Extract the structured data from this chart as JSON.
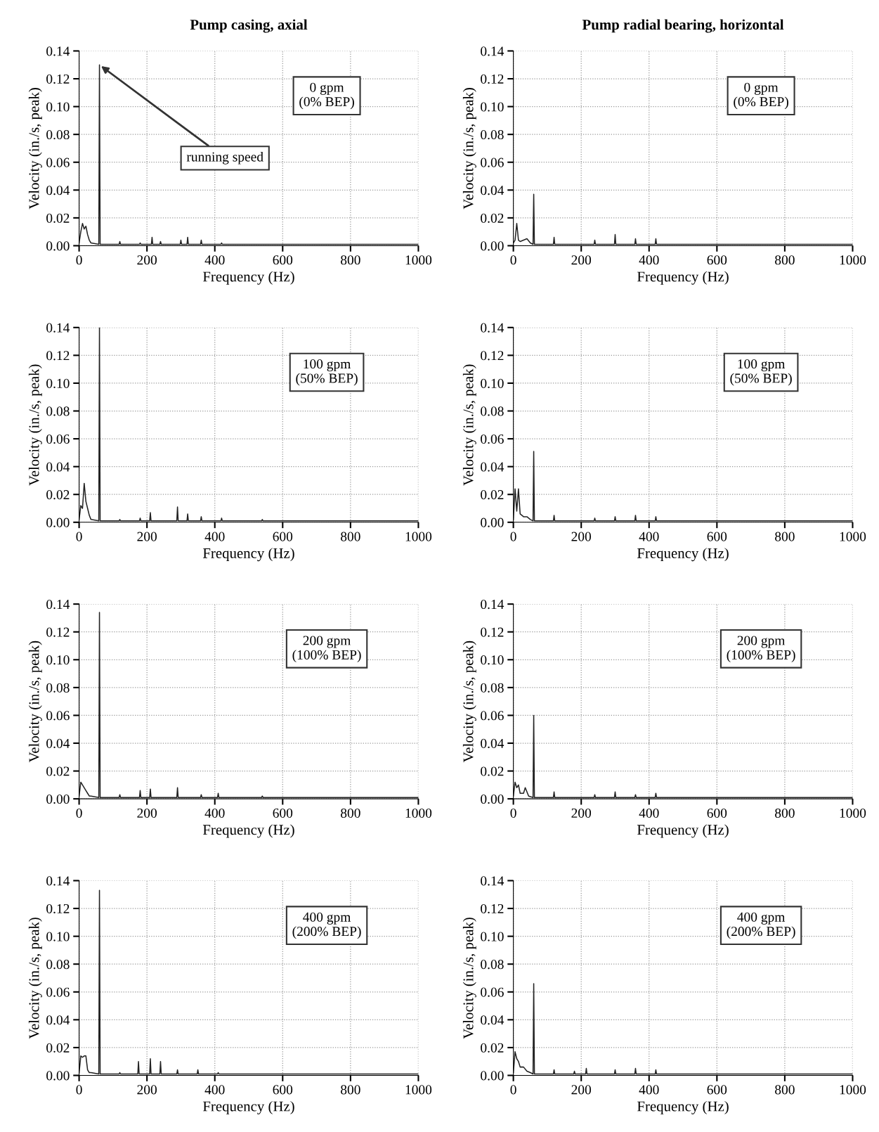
{
  "chart_data": [
    {
      "type": "line",
      "title": "Pump casing, axial",
      "xlabel": "Frequency (Hz)",
      "ylabel": "Velocity (in./s, peak)",
      "xlim": [
        0,
        1000
      ],
      "ylim": [
        0,
        0.14
      ],
      "xticks": [
        0,
        200,
        400,
        600,
        800,
        1000
      ],
      "yticks": [
        {
          "value": 0,
          "label": "0.00"
        },
        {
          "value": 0.02,
          "label": "0.02"
        },
        {
          "value": 0.04,
          "label": "0.04"
        },
        {
          "value": 0.06,
          "label": "0.06"
        },
        {
          "value": 0.08,
          "label": "0.08"
        },
        {
          "value": 0.1,
          "label": "0.10"
        },
        {
          "value": 0.12,
          "label": "0.12"
        },
        {
          "value": 0.14,
          "label": "0.14"
        }
      ],
      "grid": true,
      "x": [
        0,
        5,
        10,
        15,
        20,
        25,
        30,
        35,
        58,
        60,
        62,
        118,
        120,
        122,
        178,
        180,
        182,
        213,
        215,
        217,
        238,
        240,
        242,
        298,
        300,
        302,
        318,
        320,
        322,
        358,
        360,
        362,
        418,
        420,
        422,
        600,
        1000
      ],
      "series": [
        {
          "color": "#222222",
          "values": [
            0.002,
            0.01,
            0.016,
            0.012,
            0.014,
            0.008,
            0.004,
            0.002,
            0.001,
            0.13,
            0.001,
            0.001,
            0.003,
            0.001,
            0.001,
            0.002,
            0.001,
            0.001,
            0.006,
            0.001,
            0.001,
            0.003,
            0.001,
            0.001,
            0.004,
            0.001,
            0.001,
            0.006,
            0.001,
            0.001,
            0.004,
            0.001,
            0.001,
            0.002,
            0.001,
            0.001,
            0.001
          ]
        }
      ],
      "annotations": [
        "0 gpm\n(0% BEP)",
        {
          "text": "running speed",
          "x": 60,
          "y": 0.13
        }
      ]
    },
    {
      "type": "line",
      "title": "Pump radial bearing, horizontal",
      "xlabel": "Frequency (Hz)",
      "ylabel": "Velocity (in./s, peak)",
      "xlim": [
        0,
        1000
      ],
      "ylim": [
        0,
        0.14
      ],
      "xticks": [
        0,
        200,
        400,
        600,
        800,
        1000
      ],
      "yticks": [
        {
          "value": 0,
          "label": "0.00"
        },
        {
          "value": 0.02,
          "label": "0.02"
        },
        {
          "value": 0.04,
          "label": "0.04"
        },
        {
          "value": 0.06,
          "label": "0.06"
        },
        {
          "value": 0.08,
          "label": "0.08"
        },
        {
          "value": 0.1,
          "label": "0.10"
        },
        {
          "value": 0.12,
          "label": "0.12"
        },
        {
          "value": 0.14,
          "label": "0.14"
        }
      ],
      "grid": true,
      "x": [
        0,
        5,
        10,
        15,
        20,
        30,
        40,
        50,
        58,
        60,
        62,
        118,
        120,
        122,
        238,
        240,
        242,
        298,
        300,
        302,
        358,
        360,
        362,
        418,
        420,
        422,
        600,
        1000
      ],
      "series": [
        {
          "color": "#222222",
          "values": [
            0.002,
            0.004,
            0.016,
            0.004,
            0.003,
            0.004,
            0.005,
            0.002,
            0.001,
            0.037,
            0.001,
            0.001,
            0.006,
            0.001,
            0.001,
            0.004,
            0.001,
            0.001,
            0.008,
            0.001,
            0.001,
            0.005,
            0.001,
            0.001,
            0.005,
            0.001,
            0.001,
            0.001
          ]
        }
      ],
      "annotations": [
        "0 gpm\n(0% BEP)"
      ]
    },
    {
      "type": "line",
      "xlabel": "Frequency (Hz)",
      "ylabel": "Velocity (in./s, peak)",
      "xlim": [
        0,
        1000
      ],
      "ylim": [
        0,
        0.14
      ],
      "xticks": [
        0,
        200,
        400,
        600,
        800,
        1000
      ],
      "yticks": [
        {
          "value": 0,
          "label": "0.00"
        },
        {
          "value": 0.02,
          "label": "0.02"
        },
        {
          "value": 0.04,
          "label": "0.04"
        },
        {
          "value": 0.06,
          "label": "0.06"
        },
        {
          "value": 0.08,
          "label": "0.08"
        },
        {
          "value": 0.1,
          "label": "0.10"
        },
        {
          "value": 0.12,
          "label": "0.12"
        },
        {
          "value": 0.14,
          "label": "0.14"
        }
      ],
      "grid": true,
      "x": [
        0,
        5,
        10,
        15,
        20,
        25,
        30,
        35,
        58,
        60,
        62,
        118,
        120,
        122,
        178,
        180,
        182,
        208,
        210,
        212,
        288,
        290,
        292,
        318,
        320,
        322,
        358,
        360,
        362,
        418,
        420,
        422,
        538,
        540,
        542,
        700,
        1000
      ],
      "series": [
        {
          "color": "#222222",
          "values": [
            0.002,
            0.012,
            0.01,
            0.028,
            0.015,
            0.01,
            0.005,
            0.002,
            0.001,
            0.14,
            0.001,
            0.001,
            0.002,
            0.001,
            0.001,
            0.003,
            0.001,
            0.001,
            0.007,
            0.001,
            0.001,
            0.011,
            0.001,
            0.001,
            0.006,
            0.001,
            0.001,
            0.004,
            0.001,
            0.001,
            0.003,
            0.001,
            0.001,
            0.002,
            0.001,
            0.001,
            0.001
          ]
        }
      ],
      "annotations": [
        "100 gpm\n(50% BEP)"
      ]
    },
    {
      "type": "line",
      "xlabel": "Frequency (Hz)",
      "ylabel": "Velocity (in./s, peak)",
      "xlim": [
        0,
        1000
      ],
      "ylim": [
        0,
        0.14
      ],
      "xticks": [
        0,
        200,
        400,
        600,
        800,
        1000
      ],
      "yticks": [
        {
          "value": 0,
          "label": "0.00"
        },
        {
          "value": 0.02,
          "label": "0.02"
        },
        {
          "value": 0.04,
          "label": "0.04"
        },
        {
          "value": 0.06,
          "label": "0.06"
        },
        {
          "value": 0.08,
          "label": "0.08"
        },
        {
          "value": 0.1,
          "label": "0.10"
        },
        {
          "value": 0.12,
          "label": "0.12"
        },
        {
          "value": 0.14,
          "label": "0.14"
        }
      ],
      "grid": true,
      "x": [
        0,
        5,
        10,
        15,
        20,
        30,
        40,
        50,
        58,
        60,
        62,
        118,
        120,
        122,
        238,
        240,
        242,
        298,
        300,
        302,
        358,
        360,
        362,
        418,
        420,
        422,
        600,
        1000
      ],
      "series": [
        {
          "color": "#222222",
          "values": [
            0.002,
            0.024,
            0.008,
            0.024,
            0.006,
            0.004,
            0.004,
            0.002,
            0.001,
            0.051,
            0.001,
            0.001,
            0.005,
            0.001,
            0.001,
            0.003,
            0.001,
            0.001,
            0.004,
            0.001,
            0.001,
            0.005,
            0.001,
            0.001,
            0.004,
            0.001,
            0.001,
            0.001
          ]
        }
      ],
      "annotations": [
        "100 gpm\n(50% BEP)"
      ]
    },
    {
      "type": "line",
      "xlabel": "Frequency (Hz)",
      "ylabel": "Velocity (in./s, peak)",
      "xlim": [
        0,
        1000
      ],
      "ylim": [
        0,
        0.14
      ],
      "xticks": [
        0,
        200,
        400,
        600,
        800,
        1000
      ],
      "yticks": [
        {
          "value": 0,
          "label": "0.00"
        },
        {
          "value": 0.02,
          "label": "0.02"
        },
        {
          "value": 0.04,
          "label": "0.04"
        },
        {
          "value": 0.06,
          "label": "0.06"
        },
        {
          "value": 0.08,
          "label": "0.08"
        },
        {
          "value": 0.1,
          "label": "0.10"
        },
        {
          "value": 0.12,
          "label": "0.12"
        },
        {
          "value": 0.14,
          "label": "0.14"
        }
      ],
      "grid": true,
      "x": [
        0,
        5,
        10,
        15,
        20,
        25,
        30,
        35,
        58,
        60,
        62,
        118,
        120,
        122,
        178,
        180,
        182,
        208,
        210,
        212,
        288,
        290,
        292,
        358,
        360,
        362,
        408,
        410,
        412,
        538,
        540,
        542,
        700,
        1000
      ],
      "series": [
        {
          "color": "#222222",
          "values": [
            0.002,
            0.012,
            0.01,
            0.008,
            0.006,
            0.004,
            0.002,
            0.002,
            0.001,
            0.134,
            0.001,
            0.001,
            0.003,
            0.001,
            0.001,
            0.006,
            0.001,
            0.001,
            0.007,
            0.001,
            0.001,
            0.008,
            0.001,
            0.001,
            0.003,
            0.001,
            0.001,
            0.004,
            0.001,
            0.001,
            0.002,
            0.001,
            0.001,
            0.001
          ]
        }
      ],
      "annotations": [
        "200 gpm\n(100% BEP)"
      ]
    },
    {
      "type": "line",
      "xlabel": "Frequency (Hz)",
      "ylabel": "Velocity (in./s, peak)",
      "xlim": [
        0,
        1000
      ],
      "ylim": [
        0,
        0.14
      ],
      "xticks": [
        0,
        200,
        400,
        600,
        800,
        1000
      ],
      "yticks": [
        {
          "value": 0,
          "label": "0.00"
        },
        {
          "value": 0.02,
          "label": "0.02"
        },
        {
          "value": 0.04,
          "label": "0.04"
        },
        {
          "value": 0.06,
          "label": "0.06"
        },
        {
          "value": 0.08,
          "label": "0.08"
        },
        {
          "value": 0.1,
          "label": "0.10"
        },
        {
          "value": 0.12,
          "label": "0.12"
        },
        {
          "value": 0.14,
          "label": "0.14"
        }
      ],
      "grid": true,
      "x": [
        0,
        5,
        10,
        15,
        20,
        30,
        35,
        45,
        58,
        60,
        62,
        118,
        120,
        122,
        238,
        240,
        242,
        298,
        300,
        302,
        358,
        360,
        362,
        418,
        420,
        422,
        600,
        1000
      ],
      "series": [
        {
          "color": "#222222",
          "values": [
            0.002,
            0.012,
            0.008,
            0.01,
            0.004,
            0.004,
            0.008,
            0.002,
            0.001,
            0.06,
            0.001,
            0.001,
            0.005,
            0.001,
            0.001,
            0.003,
            0.001,
            0.001,
            0.005,
            0.001,
            0.001,
            0.003,
            0.001,
            0.001,
            0.004,
            0.001,
            0.001,
            0.001
          ]
        }
      ],
      "annotations": [
        "200 gpm\n(100% BEP)"
      ]
    },
    {
      "type": "line",
      "xlabel": "Frequency (Hz)",
      "ylabel": "Velocity (in./s, peak)",
      "xlim": [
        0,
        1000
      ],
      "ylim": [
        0,
        0.14
      ],
      "xticks": [
        0,
        200,
        400,
        600,
        800,
        1000
      ],
      "yticks": [
        {
          "value": 0,
          "label": "0.00"
        },
        {
          "value": 0.02,
          "label": "0.02"
        },
        {
          "value": 0.04,
          "label": "0.04"
        },
        {
          "value": 0.06,
          "label": "0.06"
        },
        {
          "value": 0.08,
          "label": "0.08"
        },
        {
          "value": 0.1,
          "label": "0.10"
        },
        {
          "value": 0.12,
          "label": "0.12"
        },
        {
          "value": 0.14,
          "label": "0.14"
        }
      ],
      "grid": true,
      "x": [
        0,
        5,
        10,
        15,
        20,
        25,
        30,
        35,
        58,
        60,
        62,
        118,
        120,
        122,
        173,
        175,
        177,
        208,
        210,
        212,
        238,
        240,
        242,
        288,
        290,
        292,
        348,
        350,
        352,
        408,
        410,
        412,
        600,
        1000
      ],
      "series": [
        {
          "color": "#222222",
          "values": [
            0.002,
            0.014,
            0.013,
            0.014,
            0.014,
            0.004,
            0.002,
            0.002,
            0.001,
            0.133,
            0.001,
            0.001,
            0.002,
            0.001,
            0.001,
            0.01,
            0.001,
            0.001,
            0.012,
            0.001,
            0.001,
            0.01,
            0.001,
            0.001,
            0.004,
            0.001,
            0.001,
            0.004,
            0.001,
            0.001,
            0.002,
            0.001,
            0.001,
            0.001
          ]
        }
      ],
      "annotations": [
        "400 gpm\n(200% BEP)"
      ]
    },
    {
      "type": "line",
      "xlabel": "Frequency (Hz)",
      "ylabel": "Velocity (in./s, peak)",
      "xlim": [
        0,
        1000
      ],
      "ylim": [
        0,
        0.14
      ],
      "xticks": [
        0,
        200,
        400,
        600,
        800,
        1000
      ],
      "yticks": [
        {
          "value": 0,
          "label": "0.00"
        },
        {
          "value": 0.02,
          "label": "0.02"
        },
        {
          "value": 0.04,
          "label": "0.04"
        },
        {
          "value": 0.06,
          "label": "0.06"
        },
        {
          "value": 0.08,
          "label": "0.08"
        },
        {
          "value": 0.1,
          "label": "0.10"
        },
        {
          "value": 0.12,
          "label": "0.12"
        },
        {
          "value": 0.14,
          "label": "0.14"
        }
      ],
      "grid": true,
      "x": [
        0,
        5,
        10,
        15,
        20,
        30,
        40,
        50,
        58,
        60,
        62,
        118,
        120,
        122,
        178,
        180,
        182,
        213,
        215,
        217,
        298,
        300,
        302,
        358,
        360,
        362,
        418,
        420,
        422,
        600,
        1000
      ],
      "series": [
        {
          "color": "#222222",
          "values": [
            0.002,
            0.017,
            0.012,
            0.01,
            0.006,
            0.006,
            0.003,
            0.002,
            0.001,
            0.066,
            0.001,
            0.001,
            0.004,
            0.001,
            0.001,
            0.003,
            0.001,
            0.001,
            0.005,
            0.001,
            0.001,
            0.004,
            0.001,
            0.001,
            0.005,
            0.001,
            0.001,
            0.004,
            0.001,
            0.001,
            0.001
          ]
        }
      ],
      "annotations": [
        "400 gpm\n(200% BEP)"
      ]
    }
  ]
}
